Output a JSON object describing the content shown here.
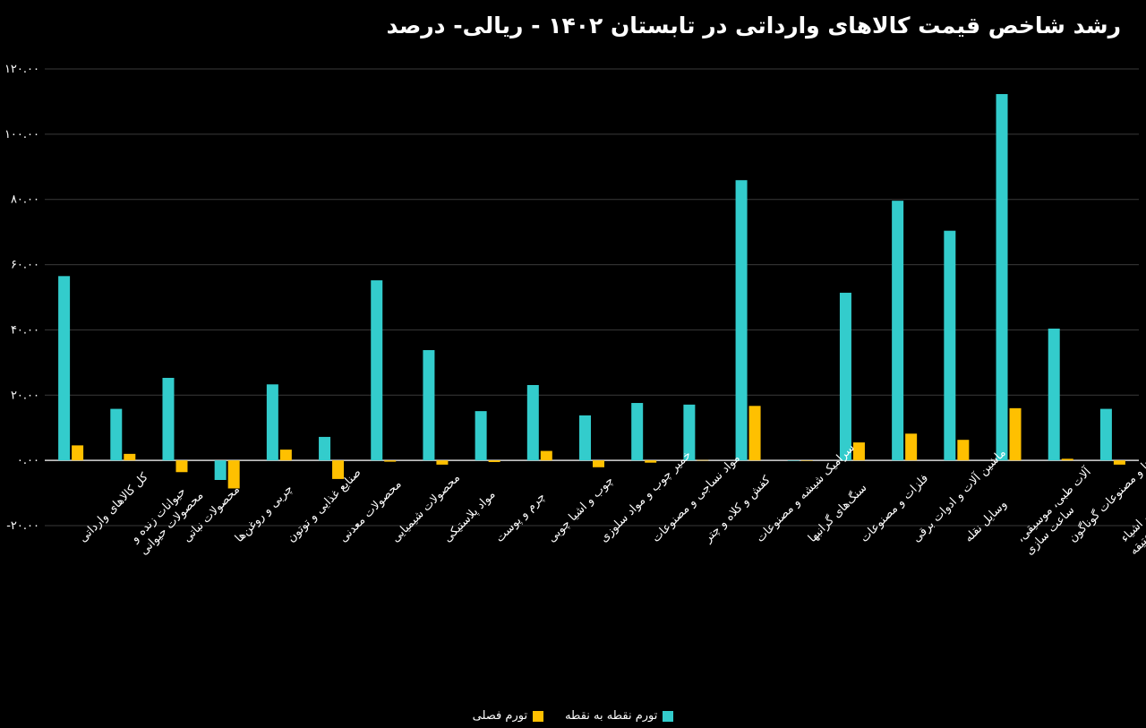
{
  "colors": {
    "background": "#000000",
    "series_1": "#33CCCC",
    "series_2": "#FFC000",
    "grid": "#3a3a3a"
  },
  "chart_data": {
    "type": "bar",
    "title": "رشد شاخص قیمت کالاهای وارداتی در تابستان ۱۴۰۲ - ریالی- درصد",
    "ylim": [
      -20,
      120
    ],
    "yticks": [
      -20,
      0,
      20,
      40,
      60,
      80,
      100,
      120
    ],
    "ytick_labels": [
      "-۲۰.۰۰",
      "۰.۰۰",
      "۲۰.۰۰",
      "۴۰.۰۰",
      "۶۰.۰۰",
      "۸۰.۰۰",
      "۱۰۰.۰۰",
      "۱۲۰.۰۰"
    ],
    "grid": true,
    "legend_position": "bottom",
    "categories": [
      "کل کالاهای وارداتی",
      "حیوانات زنده و محصولات حیوانی",
      "محصولات نباتی",
      "چربی و روغن‌ها",
      "صنایع غذایی و توتون",
      "محصولات معدنی",
      "محصولات شیمیایی",
      "مواد پلاستیکی",
      "چرم و پوست",
      "چوب و اشیا چوبی",
      "خمیر چوب و مواد سلوزی",
      "مواد نساجی و مصنوعات",
      "کفش و کلاه و چتر",
      "سرامیک شیشه و مصنوعات",
      "سنگ‌های گرانبها",
      "فلزات و مصنوعات",
      "ماشین آلات و ادوات برقی",
      "وسایل نقله",
      "آلات طبی، موسیقی، ساعت سازی",
      "کالاها و مصنوعات گوناگون",
      "اشیاء هنری، اشیاء کلکسیون یا عتیقه"
    ],
    "category_label_lines": [
      [
        "کل کالاهای وارداتی"
      ],
      [
        "حیوانات زنده و",
        "محصولات حیوانی"
      ],
      [
        "محصولات نباتی"
      ],
      [
        "چربی و روغن‌ها"
      ],
      [
        "صنایع غذایی و توتون"
      ],
      [
        "محصولات معدنی"
      ],
      [
        "محصولات شیمیایی"
      ],
      [
        "مواد پلاستیکی"
      ],
      [
        "چرم و پوست"
      ],
      [
        "چوب و اشیا چوبی"
      ],
      [
        "خمیر چوب و مواد سلوزی"
      ],
      [
        "مواد نساجی و مصنوعات"
      ],
      [
        "کفش و کلاه و چتر"
      ],
      [
        "سرامیک شیشه و مصنوعات"
      ],
      [
        "سنگ‌های گرانبها"
      ],
      [
        "فلزات و مصنوعات"
      ],
      [
        "ماشین آلات و ادوات برقی"
      ],
      [
        "وسایل نقله"
      ],
      [
        "آلات طبی، موسیقی،",
        "ساعت سازی"
      ],
      [
        "کالاها و مصنوعات گوناگون"
      ],
      [
        "اشیاء هنری، اشیاء",
        "کلکسیون یا عتیقه"
      ]
    ],
    "series": [
      {
        "name": "تورم نقطه به نقطه",
        "values": [
          56.5,
          15.8,
          25.3,
          -6.0,
          23.3,
          7.2,
          55.2,
          33.8,
          15.1,
          23.1,
          13.8,
          17.6,
          17.1,
          85.9,
          0.0,
          51.4,
          79.6,
          70.4,
          112.3,
          40.4,
          15.8
        ]
      },
      {
        "name": "تورم فصلی",
        "values": [
          4.6,
          2.0,
          -3.6,
          -8.6,
          3.3,
          -5.7,
          -0.4,
          -1.3,
          -0.5,
          2.9,
          -2.1,
          -0.7,
          0.1,
          16.7,
          0.0,
          5.5,
          8.2,
          6.3,
          16.0,
          0.5,
          -1.3
        ]
      }
    ]
  }
}
